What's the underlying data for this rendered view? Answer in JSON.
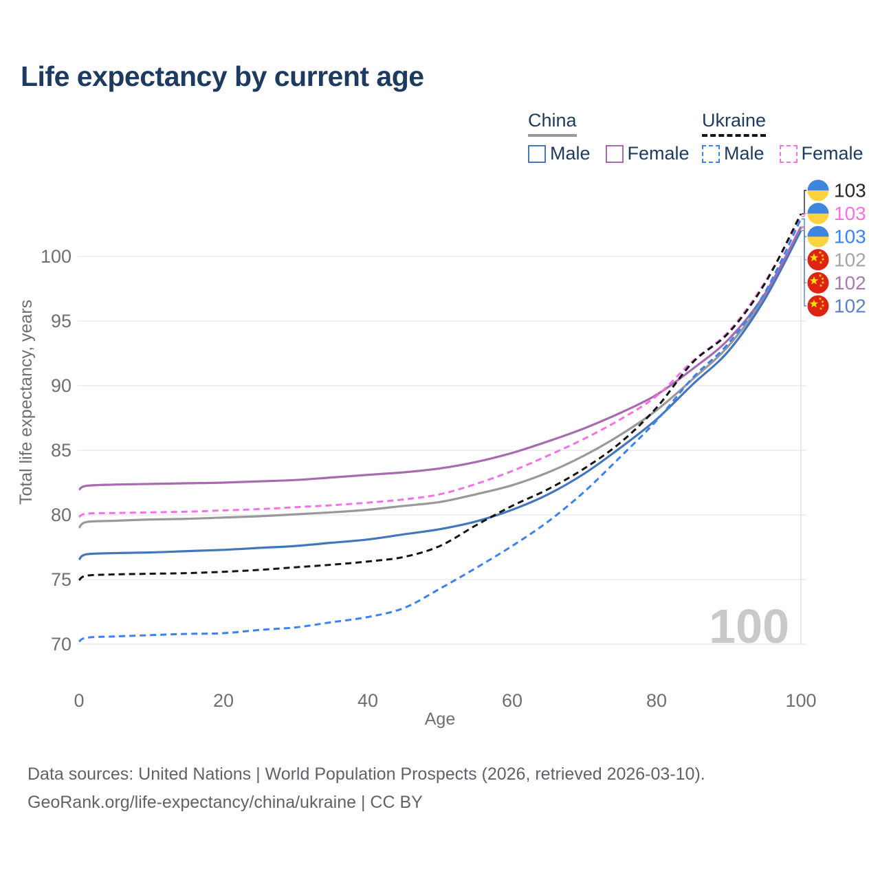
{
  "title": "Life expectancy by current age",
  "legend": {
    "groups": [
      {
        "label": "China",
        "underline_style": "solid",
        "underline_color": "#999999",
        "items": [
          {
            "label": "Male",
            "color": "#4476bb",
            "dashed": false
          },
          {
            "label": "Female",
            "color": "#a86bb0",
            "dashed": false
          }
        ]
      },
      {
        "label": "Ukraine",
        "underline_style": "dashed",
        "underline_color": "#141414",
        "items": [
          {
            "label": "Male",
            "color": "#3b82f6",
            "dashed": true
          },
          {
            "label": "Female",
            "color": "#f670e6",
            "dashed": true
          }
        ]
      }
    ]
  },
  "chart_data": {
    "type": "line",
    "title": "Life expectancy by current age",
    "xlabel": "Age",
    "ylabel": "Total life expectancy, years",
    "xlim": [
      0,
      100
    ],
    "ylim": [
      70,
      103.5
    ],
    "xticks": [
      0,
      20,
      40,
      60,
      80,
      100
    ],
    "yticks": [
      70,
      75,
      80,
      85,
      90,
      95,
      100
    ],
    "grid": "horizontal",
    "age_counter": "100",
    "x": [
      0,
      1,
      5,
      10,
      15,
      20,
      25,
      30,
      35,
      40,
      45,
      50,
      55,
      60,
      65,
      70,
      75,
      80,
      85,
      90,
      95,
      100
    ],
    "series": [
      {
        "name": "China",
        "country": "China",
        "subgroup": "Both sexes",
        "color": "#999999",
        "dashed": false,
        "values": [
          79.0,
          79.45,
          79.55,
          79.65,
          79.7,
          79.8,
          79.9,
          80.05,
          80.2,
          80.4,
          80.7,
          81.0,
          81.6,
          82.3,
          83.3,
          84.6,
          86.2,
          88.1,
          90.5,
          93.1,
          96.9,
          102.2
        ]
      },
      {
        "name": "China Male",
        "country": "China",
        "subgroup": "Male",
        "color": "#4476bb",
        "dashed": false,
        "values": [
          76.55,
          76.95,
          77.05,
          77.1,
          77.2,
          77.3,
          77.45,
          77.6,
          77.85,
          78.1,
          78.5,
          78.9,
          79.5,
          80.4,
          81.6,
          83.2,
          85.2,
          87.4,
          90.1,
          92.7,
          96.7,
          102.0
        ]
      },
      {
        "name": "China Female",
        "country": "China",
        "subgroup": "Female",
        "color": "#a86bb0",
        "dashed": false,
        "values": [
          81.95,
          82.25,
          82.35,
          82.4,
          82.45,
          82.5,
          82.6,
          82.7,
          82.9,
          83.1,
          83.3,
          83.6,
          84.1,
          84.8,
          85.7,
          86.7,
          87.9,
          89.3,
          91.3,
          93.6,
          97.1,
          102.3
        ]
      },
      {
        "name": "Ukraine Female",
        "country": "Ukraine",
        "subgroup": "Female",
        "color": "#f670e6",
        "dashed": true,
        "values": [
          79.85,
          80.1,
          80.15,
          80.2,
          80.25,
          80.35,
          80.45,
          80.6,
          80.75,
          80.95,
          81.2,
          81.6,
          82.4,
          83.4,
          84.6,
          85.9,
          87.4,
          89.2,
          91.9,
          94.2,
          98.0,
          103.1
        ]
      },
      {
        "name": "Ukraine Male",
        "country": "Ukraine",
        "subgroup": "Male",
        "color": "#3b82f6",
        "dashed": true,
        "values": [
          70.2,
          70.5,
          70.6,
          70.7,
          70.8,
          70.85,
          71.1,
          71.3,
          71.7,
          72.1,
          72.8,
          74.3,
          75.9,
          77.6,
          79.5,
          81.8,
          84.5,
          87.3,
          90.6,
          93.3,
          97.2,
          102.9
        ]
      },
      {
        "name": "Ukraine",
        "country": "Ukraine",
        "subgroup": "Both sexes",
        "color": "#141414",
        "dashed": true,
        "values": [
          74.95,
          75.3,
          75.4,
          75.45,
          75.5,
          75.6,
          75.75,
          75.95,
          76.15,
          76.4,
          76.75,
          77.6,
          79.2,
          80.7,
          82.0,
          83.6,
          85.6,
          88.3,
          91.8,
          94.1,
          97.9,
          103.3
        ]
      }
    ],
    "end_labels": [
      {
        "text": "103",
        "flag": "ukraine",
        "color": "#262626",
        "series": "Ukraine"
      },
      {
        "text": "103",
        "flag": "ukraine",
        "color": "#f670e6",
        "series": "Ukraine Female"
      },
      {
        "text": "103",
        "flag": "ukraine",
        "color": "#3b82f6",
        "series": "Ukraine Male"
      },
      {
        "text": "102",
        "flag": "china",
        "color": "#a6a6a6",
        "series": "China"
      },
      {
        "text": "102",
        "flag": "china",
        "color": "#a87ab2",
        "series": "China Female"
      },
      {
        "text": "102",
        "flag": "china",
        "color": "#5b80c4",
        "series": "China Male"
      }
    ]
  },
  "flag_colors": {
    "ukraine_blue": "#3e85dd",
    "ukraine_yellow": "#ffd23f",
    "china_red": "#df2313",
    "china_yellow": "#ffde00"
  },
  "footer": {
    "line1": "Data sources: United Nations | World Population Prospects (2026, retrieved 2026-03-10).",
    "line2": "GeoRank.org/life-expectancy/china/ukraine | CC BY"
  }
}
